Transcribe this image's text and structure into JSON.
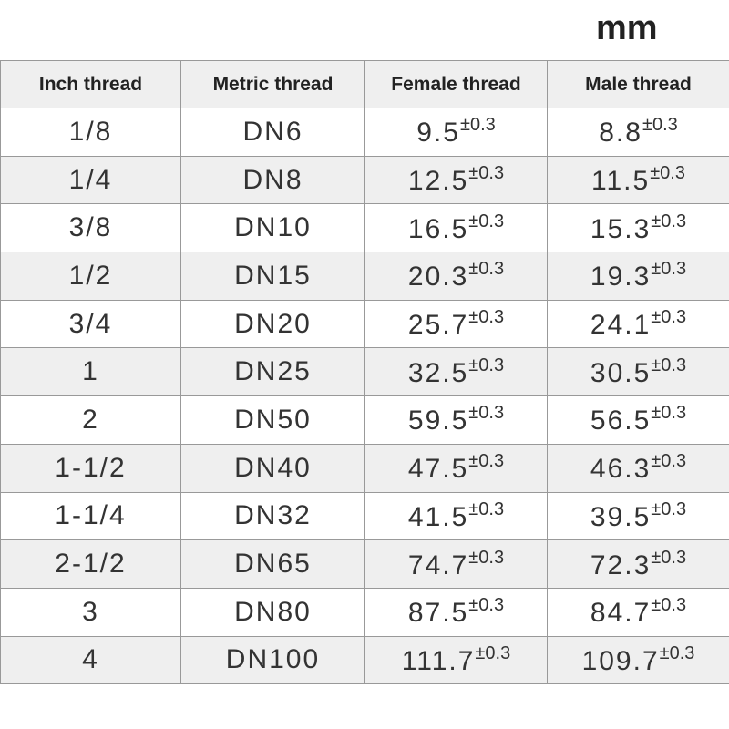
{
  "unit": "mm",
  "table": {
    "headers": [
      "Inch thread",
      "Metric thread",
      "Female thread",
      "Male thread"
    ],
    "rows": [
      {
        "inch": "1/8",
        "metric": "DN6",
        "female": {
          "value": "9.5",
          "tolerance": "±0.3"
        },
        "male": {
          "value": "8.8",
          "tolerance": "±0.3"
        }
      },
      {
        "inch": "1/4",
        "metric": "DN8",
        "female": {
          "value": "12.5",
          "tolerance": "±0.3"
        },
        "male": {
          "value": "11.5",
          "tolerance": "±0.3"
        }
      },
      {
        "inch": "3/8",
        "metric": "DN10",
        "female": {
          "value": "16.5",
          "tolerance": "±0.3"
        },
        "male": {
          "value": "15.3",
          "tolerance": "±0.3"
        }
      },
      {
        "inch": "1/2",
        "metric": "DN15",
        "female": {
          "value": "20.3",
          "tolerance": "±0.3"
        },
        "male": {
          "value": "19.3",
          "tolerance": "±0.3"
        }
      },
      {
        "inch": "3/4",
        "metric": "DN20",
        "female": {
          "value": "25.7",
          "tolerance": "±0.3"
        },
        "male": {
          "value": "24.1",
          "tolerance": "±0.3"
        }
      },
      {
        "inch": "1",
        "metric": "DN25",
        "female": {
          "value": "32.5",
          "tolerance": "±0.3"
        },
        "male": {
          "value": "30.5",
          "tolerance": "±0.3"
        }
      },
      {
        "inch": "2",
        "metric": "DN50",
        "female": {
          "value": "59.5",
          "tolerance": "±0.3"
        },
        "male": {
          "value": "56.5",
          "tolerance": "±0.3"
        }
      },
      {
        "inch": "1-1/2",
        "metric": "DN40",
        "female": {
          "value": "47.5",
          "tolerance": "±0.3"
        },
        "male": {
          "value": "46.3",
          "tolerance": "±0.3"
        }
      },
      {
        "inch": "1-1/4",
        "metric": "DN32",
        "female": {
          "value": "41.5",
          "tolerance": "±0.3"
        },
        "male": {
          "value": "39.5",
          "tolerance": "±0.3"
        }
      },
      {
        "inch": "2-1/2",
        "metric": "DN65",
        "female": {
          "value": "74.7",
          "tolerance": "±0.3"
        },
        "male": {
          "value": "72.3",
          "tolerance": "±0.3"
        }
      },
      {
        "inch": "3",
        "metric": "DN80",
        "female": {
          "value": "87.5",
          "tolerance": "±0.3"
        },
        "male": {
          "value": "84.7",
          "tolerance": "±0.3"
        }
      },
      {
        "inch": "4",
        "metric": "DN100",
        "female": {
          "value": "111.7",
          "tolerance": "±0.3"
        },
        "male": {
          "value": "109.7",
          "tolerance": "±0.3"
        }
      }
    ]
  }
}
